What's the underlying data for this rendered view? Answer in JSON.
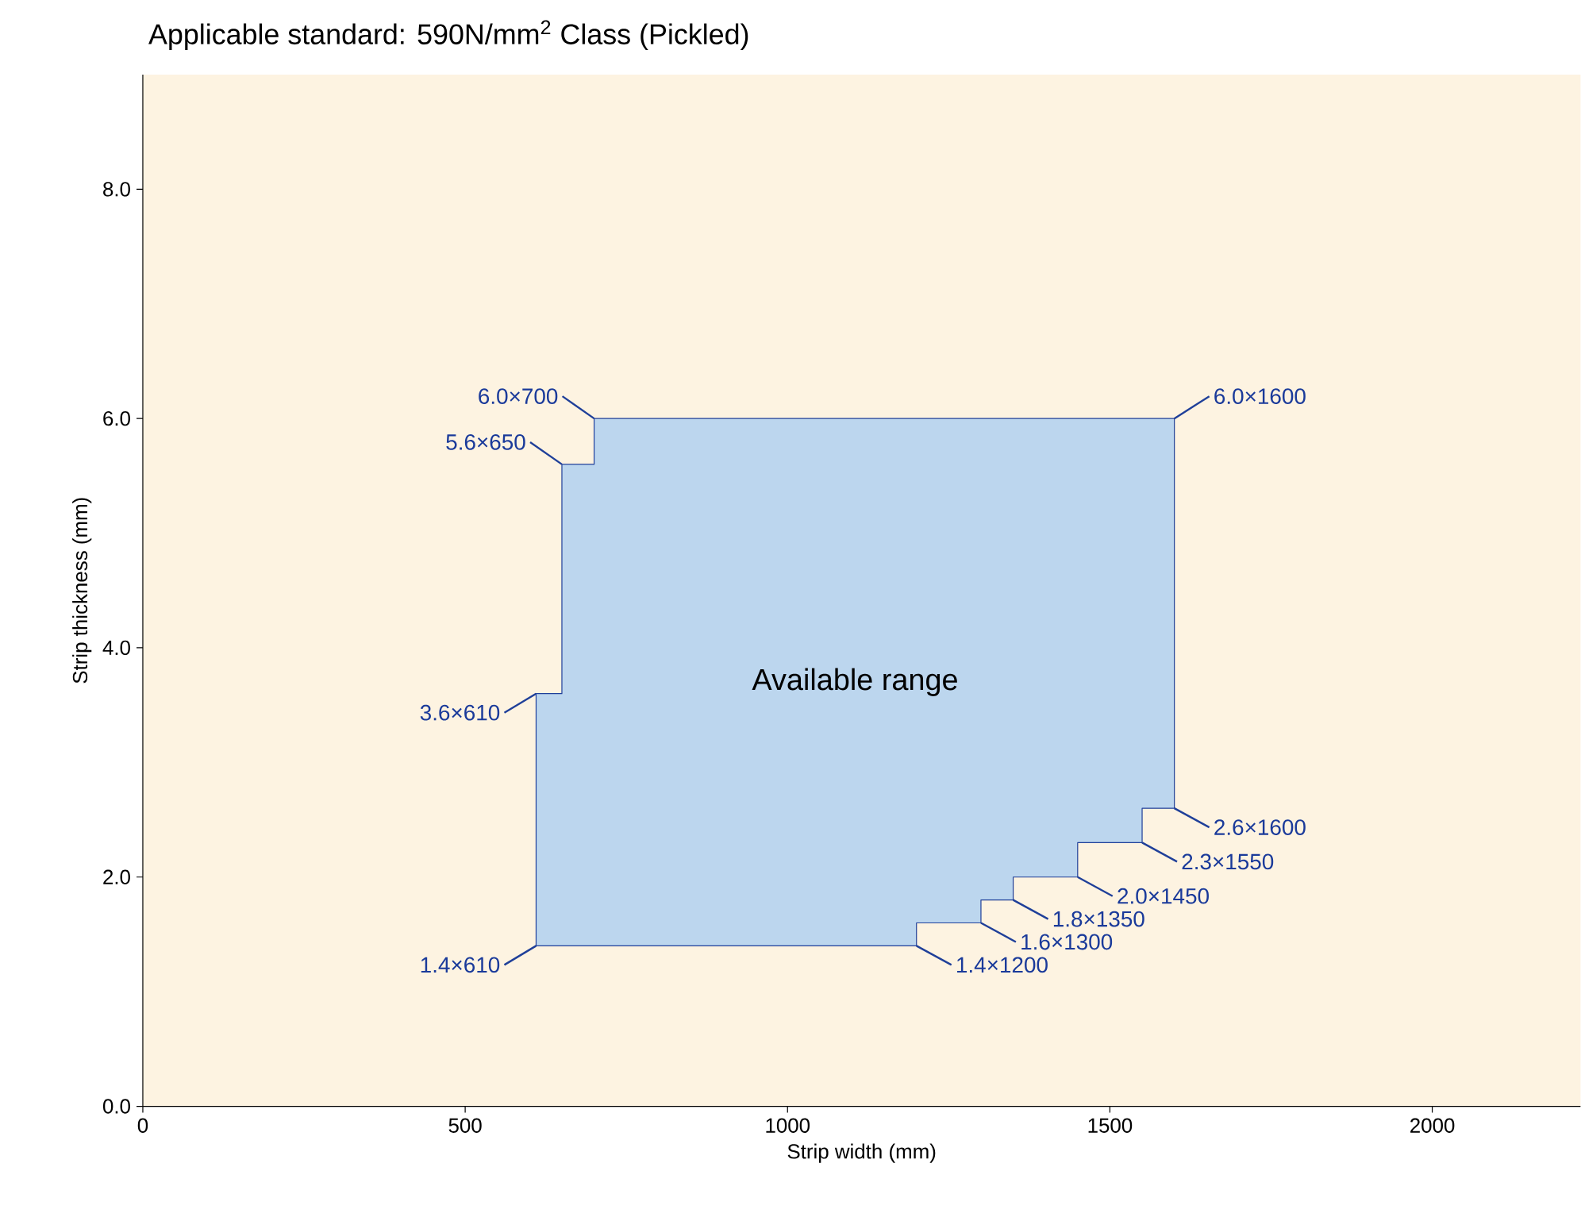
{
  "chart_data": {
    "type": "area",
    "title": "Applicable standard: 590N/mm$^{2}$ Class (Pickled)",
    "xlabel": "Strip width (mm)",
    "ylabel": "Strip thickness (mm)",
    "xlim": [
      0,
      2230
    ],
    "ylim": [
      0,
      9
    ],
    "xticks": [
      0,
      500,
      1000,
      1500,
      2000
    ],
    "yticks": [
      {
        "value": 0,
        "label": "0.0"
      },
      {
        "value": 2,
        "label": "2.0"
      },
      {
        "value": 4,
        "label": "4.0"
      },
      {
        "value": 6,
        "label": "6.0"
      },
      {
        "value": 8,
        "label": "8.0"
      }
    ],
    "series": [
      {
        "name": "Available range",
        "color": "#bcd6ee",
        "x": [
          610,
          610,
          650,
          650,
          700,
          700,
          1600,
          1600,
          1550,
          1550,
          1450,
          1450,
          1350,
          1350,
          1300,
          1300,
          1200,
          1200
        ],
        "values": [
          1.4,
          3.6,
          3.6,
          5.6,
          5.6,
          6.0,
          6.0,
          2.6,
          2.6,
          2.3,
          2.3,
          2.0,
          2.0,
          1.8,
          1.8,
          1.6,
          1.6,
          1.4
        ]
      }
    ],
    "annotations": [
      {
        "text": "6.0×700",
        "x": 700,
        "y": 6.0
      },
      {
        "text": "5.6×650",
        "x": 650,
        "y": 5.6
      },
      {
        "text": "3.6×610",
        "x": 610,
        "y": 3.6
      },
      {
        "text": "1.4×610",
        "x": 610,
        "y": 1.4
      },
      {
        "text": "6.0×1600",
        "x": 1600,
        "y": 6.0
      },
      {
        "text": "2.6×1600",
        "x": 1600,
        "y": 2.6
      },
      {
        "text": "2.3×1550",
        "x": 1550,
        "y": 2.3
      },
      {
        "text": "2.0×1450",
        "x": 1450,
        "y": 2.0
      },
      {
        "text": "1.8×1350",
        "x": 1350,
        "y": 1.8
      },
      {
        "text": "1.6×1300",
        "x": 1300,
        "y": 1.6
      },
      {
        "text": "1.4×1200",
        "x": 1200,
        "y": 1.4
      }
    ]
  }
}
